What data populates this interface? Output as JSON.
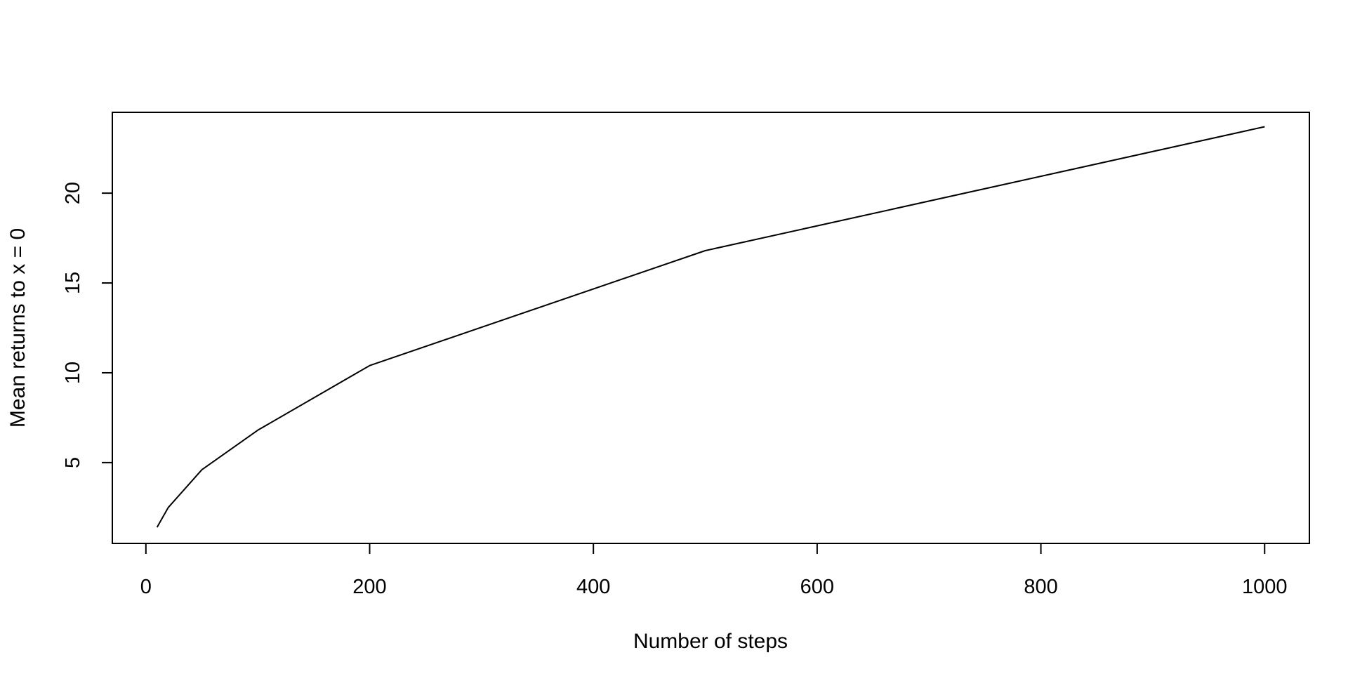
{
  "chart_data": {
    "type": "line",
    "title": "",
    "xlabel": "Number of steps",
    "ylabel": "Mean returns to x = 0",
    "x": [
      10,
      20,
      50,
      100,
      200,
      500,
      1000
    ],
    "series": [
      {
        "values": [
          1.4,
          2.5,
          4.6,
          6.8,
          10.4,
          16.8,
          23.7
        ]
      }
    ],
    "xlim": [
      -30,
      1040
    ],
    "ylim": [
      0.5,
      24.5
    ],
    "xticks": [
      0,
      200,
      400,
      600,
      800,
      1000
    ],
    "yticks": [
      5,
      10,
      15,
      20
    ],
    "grid": false,
    "legend": "none",
    "colors": {
      "line": "#000000",
      "axis": "#000000",
      "background": "#ffffff"
    }
  }
}
